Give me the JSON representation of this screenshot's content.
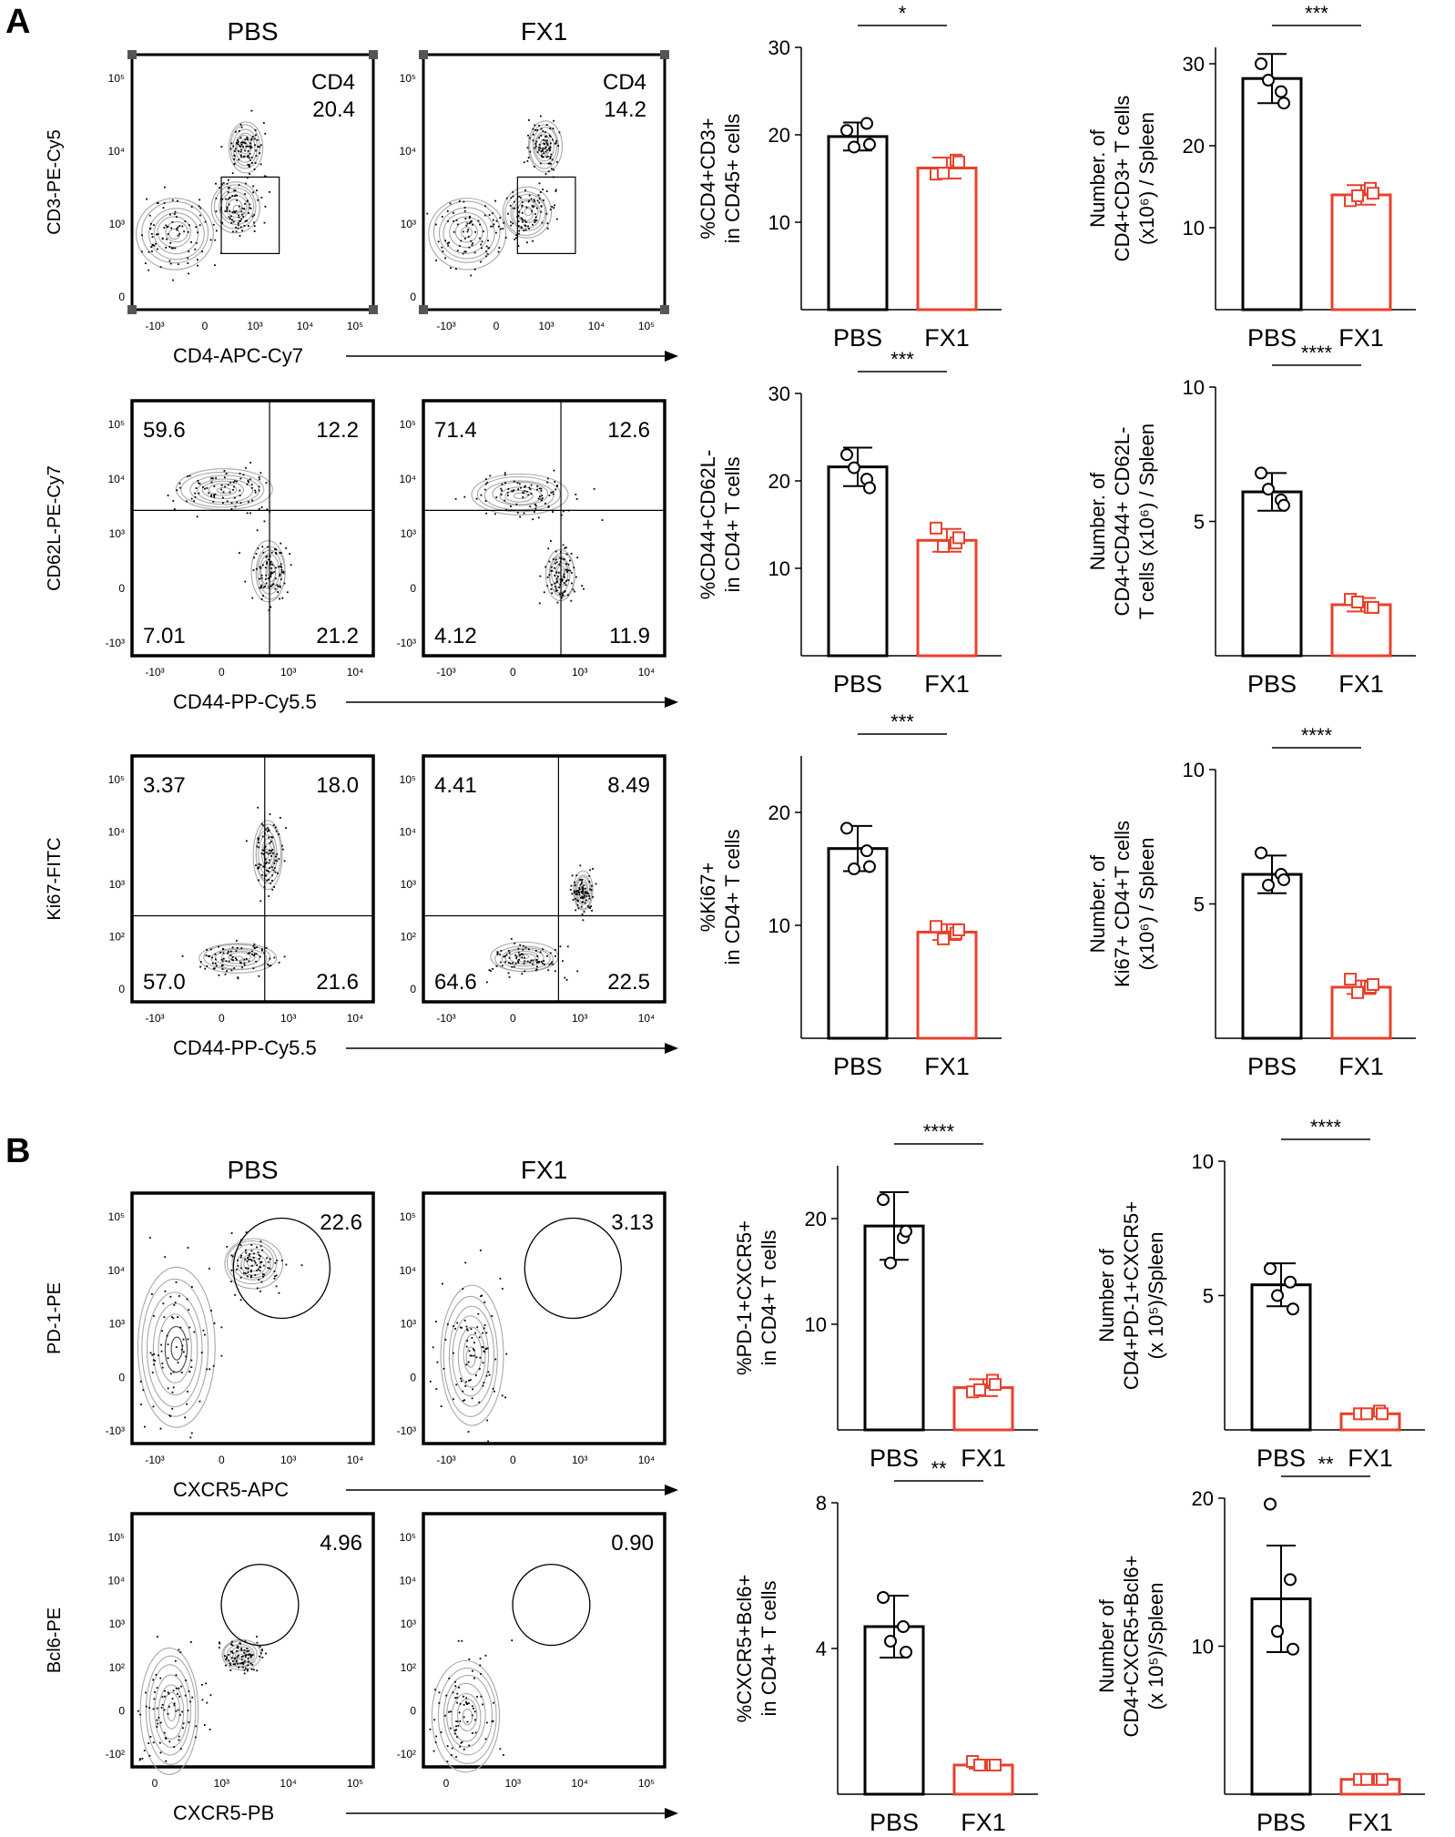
{
  "panel_labels": [
    "A",
    "B"
  ],
  "colors": {
    "pbs": "#000000",
    "fx1": "#e8412c",
    "contour": "#a8a8a8",
    "axis": "#000000"
  },
  "flow_plots": [
    {
      "id": "a1",
      "row": 1,
      "x_label": "CD4-APC-Cy7",
      "y_label": "CD3-PE-Cy5",
      "x_ticks": [
        "-10³",
        "0",
        "10³",
        "10⁴",
        "10⁵"
      ],
      "y_ticks": [
        "10⁵",
        "10⁴",
        "10³",
        "0"
      ],
      "plots": [
        {
          "condition": "PBS",
          "gate": "rectangle",
          "gate_name": "CD4",
          "gate_value": "20.4"
        },
        {
          "condition": "FX1",
          "gate": "rectangle",
          "gate_name": "CD4",
          "gate_value": "14.2"
        }
      ]
    },
    {
      "id": "a2",
      "row": 2,
      "x_label": "CD44-PP-Cy5.5",
      "y_label": "CD62L-PE-Cy7",
      "x_ticks": [
        "-10³",
        "0",
        "10³",
        "10⁴"
      ],
      "y_ticks": [
        "10⁵",
        "10⁴",
        "10³",
        "0",
        "-10³"
      ],
      "plots": [
        {
          "condition": "PBS",
          "gate": "quadrant",
          "quadrants": {
            "ul": "59.6",
            "ur": "12.2",
            "ll": "7.01",
            "lr": "21.2"
          }
        },
        {
          "condition": "FX1",
          "gate": "quadrant",
          "quadrants": {
            "ul": "71.4",
            "ur": "12.6",
            "ll": "4.12",
            "lr": "11.9"
          }
        }
      ]
    },
    {
      "id": "a3",
      "row": 3,
      "x_label": "CD44-PP-Cy5.5",
      "y_label": "Ki67-FITC",
      "x_ticks": [
        "-10³",
        "0",
        "10³",
        "10⁴"
      ],
      "y_ticks": [
        "10⁵",
        "10⁴",
        "10³",
        "10²",
        "0"
      ],
      "plots": [
        {
          "condition": "PBS",
          "gate": "quadrant",
          "quadrants": {
            "ul": "3.37",
            "ur": "18.0",
            "ll": "57.0",
            "lr": "21.6"
          }
        },
        {
          "condition": "FX1",
          "gate": "quadrant",
          "quadrants": {
            "ul": "4.41",
            "ur": "8.49",
            "ll": "64.6",
            "lr": "22.5"
          }
        }
      ]
    },
    {
      "id": "b1",
      "row": 4,
      "x_label": "CXCR5-APC",
      "y_label": "PD-1-PE",
      "x_ticks": [
        "-10³",
        "0",
        "10³",
        "10⁴"
      ],
      "y_ticks": [
        "10⁵",
        "10⁴",
        "10³",
        "0",
        "-10³"
      ],
      "plots": [
        {
          "condition": "PBS",
          "gate": "ellipse",
          "gate_value": "22.6"
        },
        {
          "condition": "FX1",
          "gate": "ellipse",
          "gate_value": "3.13"
        }
      ]
    },
    {
      "id": "b2",
      "row": 5,
      "x_label": "CXCR5-PB",
      "y_label": "Bcl6-PE",
      "x_ticks": [
        "0",
        "10³",
        "10⁴",
        "10⁵"
      ],
      "y_ticks": [
        "10⁵",
        "10⁴",
        "10³",
        "10²",
        "0",
        "-10²"
      ],
      "plots": [
        {
          "condition": "PBS",
          "gate": "ellipse",
          "gate_value": "4.96"
        },
        {
          "condition": "FX1",
          "gate": "ellipse",
          "gate_value": "0.90"
        }
      ]
    }
  ],
  "chart_data": [
    {
      "type": "bar",
      "id": "a1_pct",
      "title": "",
      "ylabel": [
        "%CD4+CD3+",
        "in CD45+ cells"
      ],
      "categories": [
        "PBS",
        "FX1"
      ],
      "ylim": [
        0,
        30
      ],
      "yticks": [
        10,
        20,
        30
      ],
      "values": [
        19.8,
        16.2
      ],
      "sd": [
        1.6,
        1.2
      ],
      "points": [
        [
          20.5,
          21.3,
          18.6,
          18.9
        ],
        [
          15.5,
          17.1,
          15.6,
          16.9
        ]
      ],
      "significance": "*"
    },
    {
      "type": "bar",
      "id": "a1_num",
      "title": "",
      "ylabel": [
        "Number. of",
        "CD4+CD3+ T cells",
        "(x10⁶) / Spleen"
      ],
      "categories": [
        "PBS",
        "FX1"
      ],
      "ylim": [
        0,
        32
      ],
      "yticks": [
        10,
        20,
        30
      ],
      "values": [
        28.2,
        14.0
      ],
      "sd": [
        3.0,
        1.2
      ],
      "points": [
        [
          30.0,
          26.6,
          28.0,
          25.2
        ],
        [
          13.3,
          14.8,
          13.9,
          14.2
        ]
      ],
      "significance": "***"
    },
    {
      "type": "bar",
      "id": "a2_pct",
      "title": "",
      "ylabel": [
        "%CD44+CD62L-",
        "in CD4+ T cells"
      ],
      "categories": [
        "PBS",
        "FX1"
      ],
      "ylim": [
        0,
        30
      ],
      "yticks": [
        10,
        20,
        30
      ],
      "values": [
        21.6,
        13.2
      ],
      "sd": [
        2.2,
        1.3
      ],
      "points": [
        [
          23.0,
          20.2,
          21.5,
          19.2
        ],
        [
          14.6,
          12.9,
          12.5,
          13.5
        ]
      ],
      "significance": "***"
    },
    {
      "type": "bar",
      "id": "a2_num",
      "title": "",
      "ylabel": [
        "Number. of",
        "CD4+CD44+ CD62L-",
        "T cells (x10⁶) / Spleen"
      ],
      "categories": [
        "PBS",
        "FX1"
      ],
      "ylim": [
        0,
        10
      ],
      "yticks": [
        5,
        10
      ],
      "values": [
        6.1,
        1.9
      ],
      "sd": [
        0.7,
        0.25
      ],
      "points": [
        [
          6.8,
          5.8,
          6.2,
          5.6
        ],
        [
          2.1,
          1.8,
          2.0,
          1.8
        ]
      ],
      "significance": "****"
    },
    {
      "type": "bar",
      "id": "a3_pct",
      "title": "",
      "ylabel": [
        "%Ki67+",
        "in CD4+ T cells"
      ],
      "categories": [
        "PBS",
        "FX1"
      ],
      "ylim": [
        0,
        25
      ],
      "yticks": [
        10,
        20
      ],
      "values": [
        16.8,
        9.4
      ],
      "sd": [
        2.0,
        0.7
      ],
      "points": [
        [
          18.6,
          16.6,
          15.0,
          15.2
        ],
        [
          9.9,
          9.3,
          8.8,
          9.6
        ]
      ],
      "significance": "***"
    },
    {
      "type": "bar",
      "id": "a3_num",
      "title": "",
      "ylabel": [
        "Number. of",
        "Ki67+ CD4+T cells",
        "(x10⁶) / Spleen"
      ],
      "categories": [
        "PBS",
        "FX1"
      ],
      "ylim": [
        0,
        10
      ],
      "yticks": [
        5,
        10
      ],
      "values": [
        6.1,
        1.9
      ],
      "sd": [
        0.7,
        0.25
      ],
      "points": [
        [
          6.9,
          6.1,
          5.7,
          5.9
        ],
        [
          2.2,
          1.9,
          1.7,
          2.0
        ]
      ],
      "significance": "****"
    },
    {
      "type": "bar",
      "id": "b1_pct",
      "title": "",
      "ylabel": [
        "%PD-1+CXCR5+",
        "in CD4+ T cells"
      ],
      "categories": [
        "PBS",
        "FX1"
      ],
      "ylim": [
        0,
        25
      ],
      "yticks": [
        10,
        20
      ],
      "values": [
        19.3,
        4.0
      ],
      "sd": [
        3.2,
        0.8
      ],
      "points": [
        [
          21.8,
          18.2,
          15.8,
          18.8
        ],
        [
          3.6,
          4.7,
          3.8,
          4.3
        ]
      ],
      "significance": "****"
    },
    {
      "type": "bar",
      "id": "b1_num",
      "title": "",
      "ylabel": [
        "Number of",
        "CD4+PD-1+CXCR5+",
        "(x 10⁵)/Spleen"
      ],
      "categories": [
        "PBS",
        "FX1"
      ],
      "ylim": [
        0,
        10
      ],
      "yticks": [
        5,
        10
      ],
      "values": [
        5.4,
        0.6
      ],
      "sd": [
        0.8,
        0.1
      ],
      "points": [
        [
          6.0,
          5.5,
          5.0,
          4.5
        ],
        [
          0.6,
          0.7,
          0.6,
          0.6
        ]
      ],
      "significance": "****"
    },
    {
      "type": "bar",
      "id": "b2_pct",
      "title": "",
      "ylabel": [
        "%CXCR5+Bcl6+",
        "in CD4+ T cells"
      ],
      "categories": [
        "PBS",
        "FX1"
      ],
      "ylim": [
        0,
        8
      ],
      "yticks": [
        4,
        8
      ],
      "values": [
        4.6,
        0.8
      ],
      "sd": [
        0.85,
        0.1
      ],
      "points": [
        [
          5.4,
          4.6,
          4.2,
          3.9
        ],
        [
          0.9,
          0.8,
          0.8,
          0.8
        ]
      ],
      "significance": "**"
    },
    {
      "type": "bar",
      "id": "b2_num",
      "title": "",
      "ylabel": [
        "Number of",
        "CD4+CXCR5+Bcl6+",
        "(x 10⁵)/Spleen"
      ],
      "categories": [
        "PBS",
        "FX1"
      ],
      "ylim": [
        0,
        20
      ],
      "yticks": [
        10,
        20
      ],
      "values": [
        13.2,
        1.0
      ],
      "sd": [
        3.6,
        0.2
      ],
      "points": [
        [
          19.6,
          14.5,
          11.0,
          9.8
        ],
        [
          1.0,
          1.0,
          1.0,
          1.0
        ]
      ],
      "significance": "**"
    }
  ]
}
